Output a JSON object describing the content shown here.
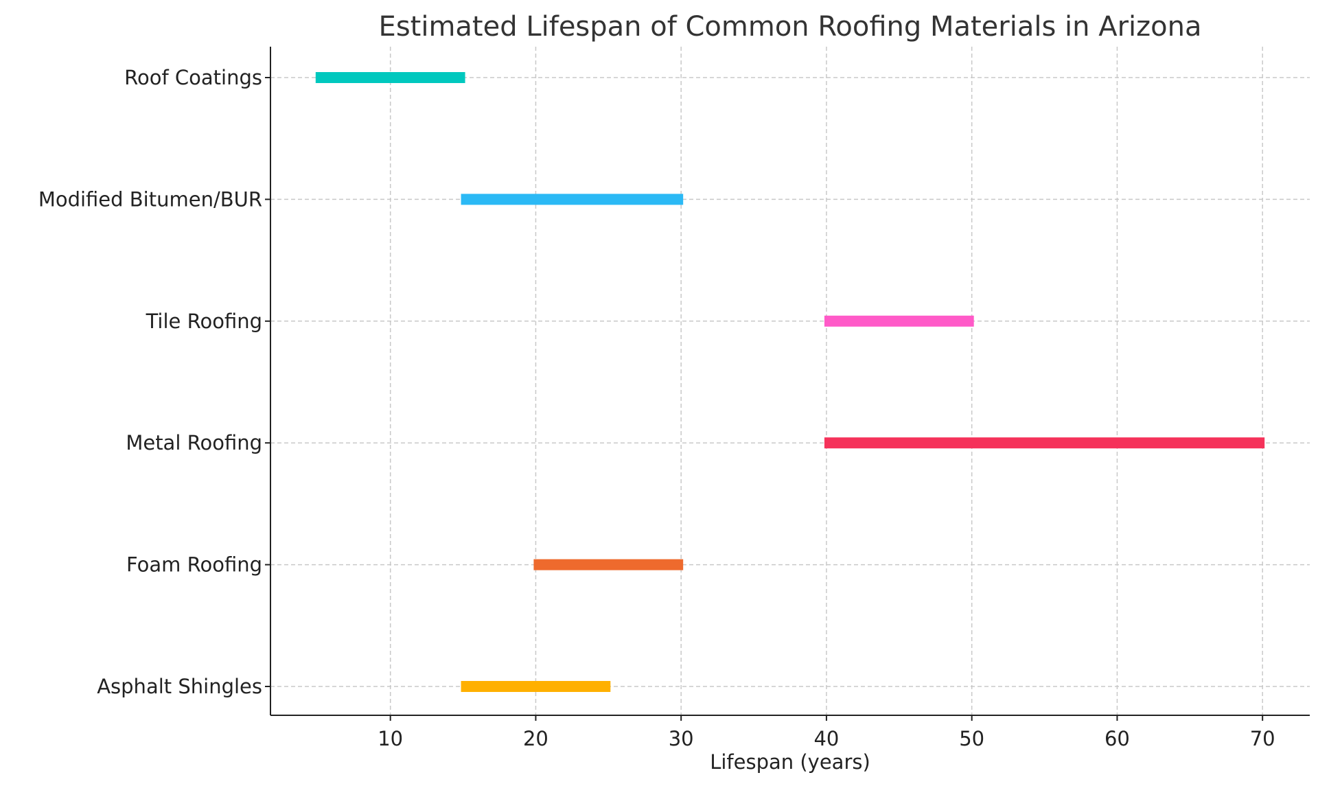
{
  "chart_data": {
    "type": "range-bar",
    "title": "Estimated Lifespan of Common Roofing Materials in Arizona",
    "xlabel": "Lifespan (years)",
    "ylabel": "",
    "xlim": [
      1.75,
      73.25
    ],
    "xticks": [
      10,
      20,
      30,
      40,
      50,
      60,
      70
    ],
    "grid": true,
    "categories": [
      "Asphalt Shingles",
      "Foam Roofing",
      "Metal Roofing",
      "Tile Roofing",
      "Modified Bitumen/BUR",
      "Roof Coatings"
    ],
    "ranges": [
      {
        "start": 15,
        "end": 25,
        "color": "#FFB000"
      },
      {
        "start": 20,
        "end": 30,
        "color": "#EE6A2D"
      },
      {
        "start": 40,
        "end": 70,
        "color": "#F5325A"
      },
      {
        "start": 40,
        "end": 50,
        "color": "#FF5AC8"
      },
      {
        "start": 15,
        "end": 30,
        "color": "#2BB9F5"
      },
      {
        "start": 5,
        "end": 15,
        "color": "#00C8BE"
      }
    ]
  }
}
